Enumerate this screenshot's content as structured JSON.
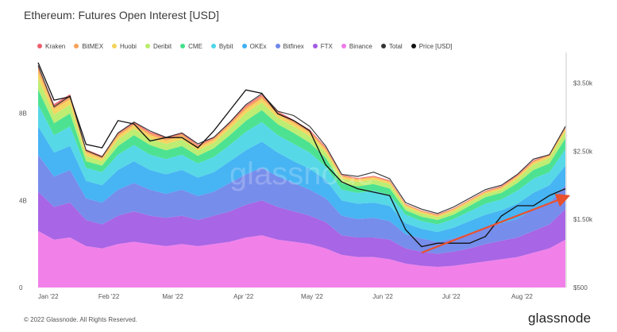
{
  "title": "Ethereum: Futures Open Interest [USD]",
  "footer": "© 2022 Glassnode. All Rights Reserved.",
  "brand": "glassnode",
  "watermark": "glassnode",
  "chart_data": {
    "type": "area",
    "stacked": true,
    "title": "Ethereum: Futures Open Interest [USD]",
    "x_ticks": [
      "Jan '22",
      "Feb '22",
      "Mar '22",
      "Apr '22",
      "May '22",
      "Jun '22",
      "Jul '22",
      "Aug '22"
    ],
    "y_left_ticks": [
      "0",
      "4B",
      "8B"
    ],
    "y_left_range": [
      0,
      10.8
    ],
    "y_right_ticks": [
      "$500",
      "$1.50k",
      "$2.50k",
      "$3.50k"
    ],
    "y_right_range": [
      500,
      3950
    ],
    "legend": [
      {
        "name": "Kraken",
        "color": "#ef5d6a"
      },
      {
        "name": "BitMEX",
        "color": "#f5a25a"
      },
      {
        "name": "Huobi",
        "color": "#f4d35a"
      },
      {
        "name": "Deribit",
        "color": "#b9ec6b"
      },
      {
        "name": "CME",
        "color": "#43e08b"
      },
      {
        "name": "Bybit",
        "color": "#4dd6e6"
      },
      {
        "name": "OKEx",
        "color": "#3db0f2"
      },
      {
        "name": "Bitfinex",
        "color": "#6f87ea"
      },
      {
        "name": "FTX",
        "color": "#a35de4"
      },
      {
        "name": "Binance",
        "color": "#f07ae8"
      },
      {
        "name": "Total",
        "color": "#333333"
      },
      {
        "name": "Price [USD]",
        "color": "#111111"
      }
    ],
    "dates": [
      "Jan 1",
      "Jan 8",
      "Jan 15",
      "Jan 22",
      "Jan 29",
      "Feb 5",
      "Feb 12",
      "Feb 19",
      "Feb 26",
      "Mar 5",
      "Mar 12",
      "Mar 19",
      "Mar 26",
      "Apr 2",
      "Apr 9",
      "Apr 16",
      "Apr 23",
      "Apr 30",
      "May 7",
      "May 14",
      "May 21",
      "May 28",
      "Jun 4",
      "Jun 11",
      "Jun 18",
      "Jun 25",
      "Jul 2",
      "Jul 9",
      "Jul 16",
      "Jul 23",
      "Jul 30",
      "Aug 6",
      "Aug 13",
      "Aug 20"
    ],
    "total_oi": [
      10.2,
      8.3,
      8.8,
      6.3,
      6.0,
      7.1,
      7.6,
      7.2,
      6.9,
      7.1,
      6.6,
      6.9,
      7.6,
      8.4,
      8.9,
      8.1,
      7.9,
      7.4,
      6.5,
      5.2,
      5.1,
      5.3,
      5.0,
      3.9,
      3.6,
      3.4,
      3.7,
      4.1,
      4.5,
      4.7,
      5.2,
      5.9,
      6.1,
      7.4
    ],
    "price_usd": [
      3800,
      3250,
      3300,
      2600,
      2550,
      2950,
      2900,
      2650,
      2700,
      2700,
      2550,
      2800,
      3100,
      3400,
      3350,
      3050,
      2950,
      2800,
      2300,
      2050,
      1950,
      1900,
      1850,
      1350,
      1100,
      1150,
      1150,
      1150,
      1250,
      1550,
      1700,
      1700,
      1850,
      1950
    ],
    "series": [
      {
        "name": "Binance",
        "values": [
          2.6,
          2.2,
          2.3,
          1.9,
          1.8,
          2.0,
          2.1,
          2.0,
          1.9,
          2.0,
          1.9,
          2.0,
          2.1,
          2.3,
          2.4,
          2.2,
          2.1,
          2.0,
          1.8,
          1.5,
          1.4,
          1.4,
          1.3,
          1.1,
          1.0,
          0.95,
          1.0,
          1.1,
          1.2,
          1.3,
          1.4,
          1.6,
          1.8,
          2.2
        ]
      },
      {
        "name": "FTX",
        "values": [
          1.8,
          1.5,
          1.6,
          1.2,
          1.1,
          1.3,
          1.4,
          1.3,
          1.3,
          1.3,
          1.2,
          1.3,
          1.4,
          1.5,
          1.6,
          1.5,
          1.4,
          1.3,
          1.2,
          0.9,
          0.9,
          0.9,
          0.9,
          0.7,
          0.65,
          0.6,
          0.65,
          0.7,
          0.8,
          0.85,
          0.9,
          1.0,
          1.1,
          1.4
        ]
      },
      {
        "name": "Bitfinex",
        "values": [
          1.7,
          1.4,
          1.5,
          1.0,
          1.0,
          1.2,
          1.3,
          1.2,
          1.1,
          1.2,
          1.1,
          1.1,
          1.3,
          1.4,
          1.5,
          1.4,
          1.3,
          1.2,
          1.1,
          0.9,
          0.85,
          0.9,
          0.85,
          0.65,
          0.6,
          0.55,
          0.6,
          0.7,
          0.75,
          0.8,
          0.85,
          1.0,
          1.0,
          1.1
        ]
      },
      {
        "name": "OKEx",
        "values": [
          1.3,
          1.1,
          1.1,
          0.8,
          0.8,
          0.9,
          1.0,
          0.9,
          0.9,
          0.9,
          0.85,
          0.9,
          1.0,
          1.1,
          1.2,
          1.1,
          1.0,
          0.95,
          0.85,
          0.7,
          0.7,
          0.7,
          0.7,
          0.5,
          0.45,
          0.45,
          0.5,
          0.55,
          0.6,
          0.6,
          0.7,
          0.75,
          0.8,
          0.9
        ]
      },
      {
        "name": "Bybit",
        "values": [
          1.0,
          0.8,
          0.9,
          0.6,
          0.6,
          0.7,
          0.75,
          0.7,
          0.7,
          0.7,
          0.65,
          0.7,
          0.75,
          0.85,
          0.9,
          0.8,
          0.8,
          0.75,
          0.6,
          0.5,
          0.5,
          0.55,
          0.5,
          0.4,
          0.35,
          0.35,
          0.4,
          0.45,
          0.5,
          0.5,
          0.6,
          0.65,
          0.6,
          0.75
        ]
      },
      {
        "name": "CME",
        "values": [
          0.7,
          0.55,
          0.6,
          0.3,
          0.3,
          0.4,
          0.45,
          0.45,
          0.4,
          0.4,
          0.35,
          0.4,
          0.45,
          0.5,
          0.55,
          0.5,
          0.5,
          0.45,
          0.4,
          0.3,
          0.3,
          0.3,
          0.3,
          0.2,
          0.2,
          0.2,
          0.2,
          0.25,
          0.3,
          0.3,
          0.35,
          0.4,
          0.4,
          0.5
        ]
      },
      {
        "name": "Deribit",
        "values": [
          0.5,
          0.4,
          0.4,
          0.25,
          0.2,
          0.3,
          0.3,
          0.3,
          0.3,
          0.3,
          0.25,
          0.25,
          0.3,
          0.35,
          0.35,
          0.3,
          0.3,
          0.3,
          0.25,
          0.2,
          0.2,
          0.2,
          0.2,
          0.15,
          0.15,
          0.13,
          0.15,
          0.15,
          0.15,
          0.15,
          0.2,
          0.25,
          0.25,
          0.3
        ]
      },
      {
        "name": "Huobi",
        "values": [
          0.3,
          0.25,
          0.25,
          0.15,
          0.12,
          0.15,
          0.15,
          0.15,
          0.15,
          0.15,
          0.13,
          0.13,
          0.15,
          0.18,
          0.18,
          0.15,
          0.15,
          0.15,
          0.13,
          0.1,
          0.1,
          0.1,
          0.1,
          0.08,
          0.08,
          0.07,
          0.08,
          0.08,
          0.08,
          0.08,
          0.1,
          0.1,
          0.1,
          0.12
        ]
      },
      {
        "name": "BitMEX",
        "values": [
          0.2,
          0.15,
          0.15,
          0.1,
          0.08,
          0.1,
          0.1,
          0.1,
          0.1,
          0.1,
          0.08,
          0.08,
          0.1,
          0.12,
          0.12,
          0.1,
          0.1,
          0.1,
          0.08,
          0.05,
          0.05,
          0.05,
          0.05,
          0.04,
          0.04,
          0.04,
          0.04,
          0.04,
          0.04,
          0.05,
          0.05,
          0.06,
          0.05,
          0.07
        ]
      },
      {
        "name": "Kraken",
        "values": [
          0.1,
          0.08,
          0.08,
          0.05,
          0.05,
          0.05,
          0.05,
          0.05,
          0.05,
          0.05,
          0.04,
          0.04,
          0.05,
          0.06,
          0.06,
          0.05,
          0.05,
          0.05,
          0.04,
          0.03,
          0.03,
          0.03,
          0.03,
          0.02,
          0.02,
          0.02,
          0.02,
          0.02,
          0.02,
          0.03,
          0.03,
          0.03,
          0.03,
          0.04
        ]
      }
    ],
    "annotation": {
      "type": "arrow",
      "color": "#e8502e",
      "from": [
        "Jun 18",
        1.6
      ],
      "to": [
        "Aug 20",
        4.15
      ]
    }
  }
}
